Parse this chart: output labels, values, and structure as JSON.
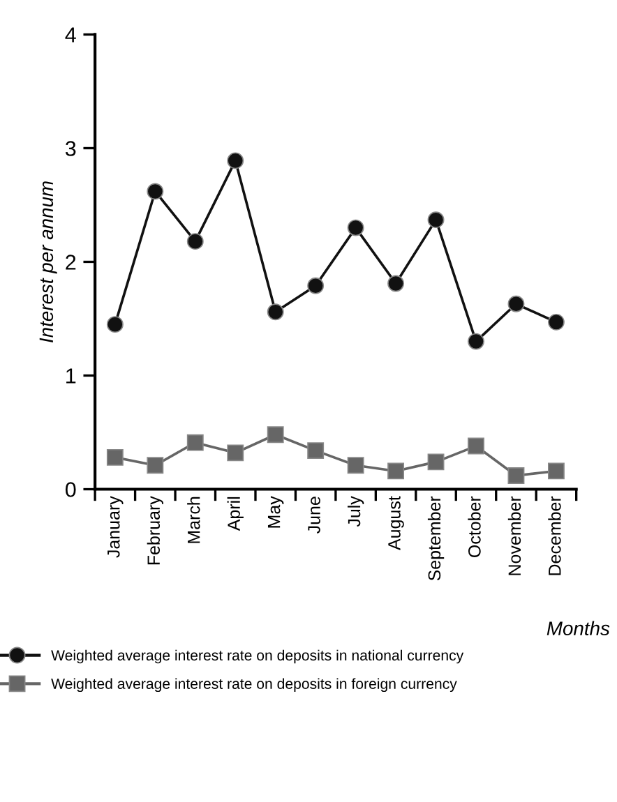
{
  "chart_data": {
    "type": "line",
    "xlabel": "Months",
    "ylabel": "Interest per annum",
    "categories": [
      "January",
      "February",
      "March",
      "April",
      "May",
      "June",
      "July",
      "August",
      "September",
      "October",
      "November",
      "December"
    ],
    "series": [
      {
        "name": "Weighted average interest rate on deposits in national currency",
        "color": "#111111",
        "marker": "circle",
        "values": [
          1.45,
          2.62,
          2.18,
          2.89,
          1.56,
          1.79,
          2.3,
          1.81,
          2.37,
          1.3,
          1.63,
          1.47
        ]
      },
      {
        "name": "Weighted average interest rate on deposits in foreign currency",
        "color": "#666666",
        "marker": "square",
        "values": [
          0.28,
          0.21,
          0.41,
          0.32,
          0.48,
          0.34,
          0.21,
          0.16,
          0.24,
          0.38,
          0.12,
          0.16
        ]
      }
    ],
    "ylim": [
      0,
      4
    ],
    "yticks": [
      0,
      1,
      2,
      3,
      4
    ],
    "grid": false,
    "legend": "bottom",
    "line_style": "solid"
  }
}
